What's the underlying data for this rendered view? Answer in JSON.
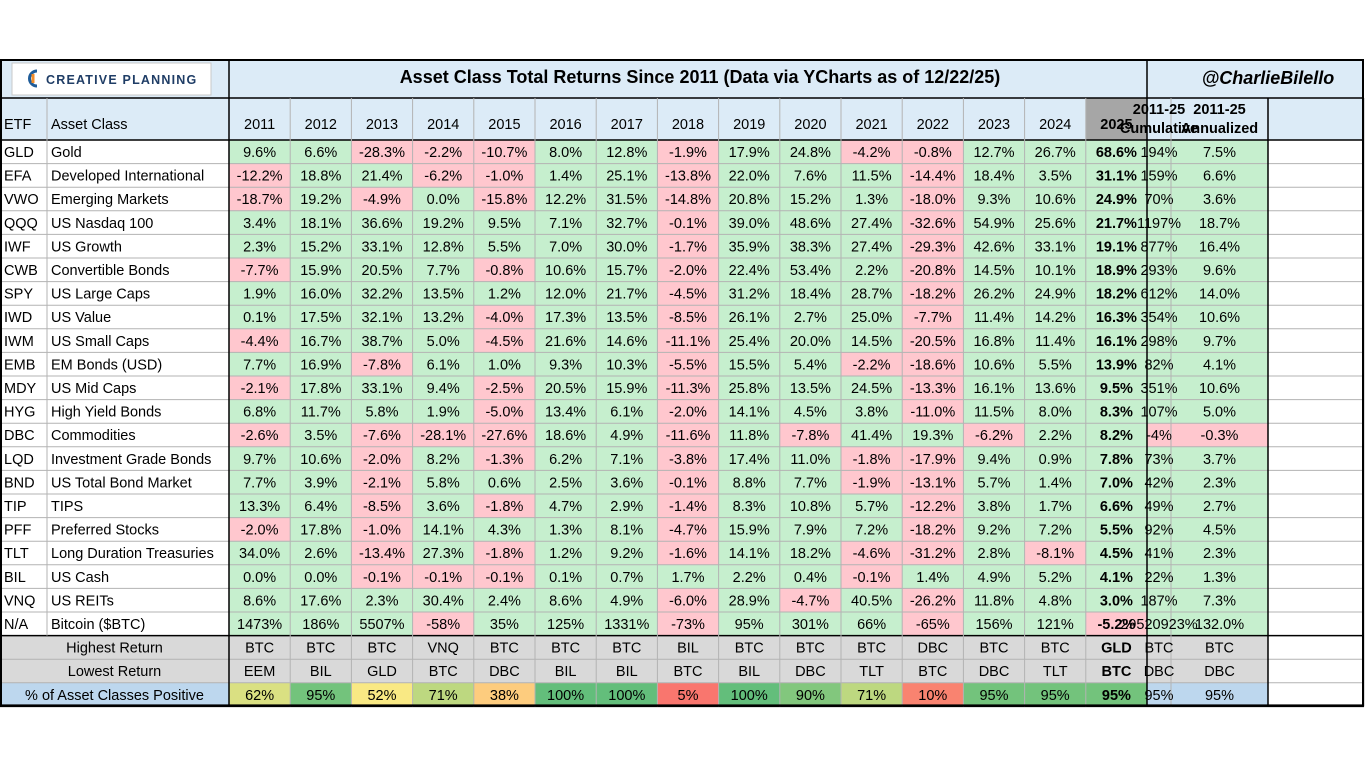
{
  "header": {
    "logo_text": "CREATIVE PLANNING",
    "title": "Asset Class Total Returns Since 2011 (Data via YCharts as of 12/22/25)",
    "handle": "@CharlieBilello"
  },
  "chart_data": {
    "type": "table",
    "title": "Asset Class Total Returns Since 2011 (Data via YCharts as of 12/22/25)",
    "columns": {
      "etf": "ETF",
      "asset_class": "Asset Class",
      "years": [
        "2011",
        "2012",
        "2013",
        "2014",
        "2015",
        "2016",
        "2017",
        "2018",
        "2019",
        "2020",
        "2021",
        "2022",
        "2023",
        "2024",
        "2025"
      ],
      "cumulative": [
        "2011-25",
        "Cumulative"
      ],
      "annualized": [
        "2011-25",
        "Annualized"
      ]
    },
    "rows": [
      {
        "etf": "GLD",
        "name": "Gold",
        "values": [
          "9.6%",
          "6.6%",
          "-28.3%",
          "-2.2%",
          "-10.7%",
          "8.0%",
          "12.8%",
          "-1.9%",
          "17.9%",
          "24.8%",
          "-4.2%",
          "-0.8%",
          "12.7%",
          "26.7%",
          "68.6%"
        ],
        "cumulative": "194%",
        "annualized": "7.5%"
      },
      {
        "etf": "EFA",
        "name": "Developed International",
        "values": [
          "-12.2%",
          "18.8%",
          "21.4%",
          "-6.2%",
          "-1.0%",
          "1.4%",
          "25.1%",
          "-13.8%",
          "22.0%",
          "7.6%",
          "11.5%",
          "-14.4%",
          "18.4%",
          "3.5%",
          "31.1%"
        ],
        "cumulative": "159%",
        "annualized": "6.6%"
      },
      {
        "etf": "VWO",
        "name": "Emerging Markets",
        "values": [
          "-18.7%",
          "19.2%",
          "-4.9%",
          "0.0%",
          "-15.8%",
          "12.2%",
          "31.5%",
          "-14.8%",
          "20.8%",
          "15.2%",
          "1.3%",
          "-18.0%",
          "9.3%",
          "10.6%",
          "24.9%"
        ],
        "cumulative": "70%",
        "annualized": "3.6%"
      },
      {
        "etf": "QQQ",
        "name": "US Nasdaq 100",
        "values": [
          "3.4%",
          "18.1%",
          "36.6%",
          "19.2%",
          "9.5%",
          "7.1%",
          "32.7%",
          "-0.1%",
          "39.0%",
          "48.6%",
          "27.4%",
          "-32.6%",
          "54.9%",
          "25.6%",
          "21.7%"
        ],
        "cumulative": "1197%",
        "annualized": "18.7%"
      },
      {
        "etf": "IWF",
        "name": "US Growth",
        "values": [
          "2.3%",
          "15.2%",
          "33.1%",
          "12.8%",
          "5.5%",
          "7.0%",
          "30.0%",
          "-1.7%",
          "35.9%",
          "38.3%",
          "27.4%",
          "-29.3%",
          "42.6%",
          "33.1%",
          "19.1%"
        ],
        "cumulative": "877%",
        "annualized": "16.4%"
      },
      {
        "etf": "CWB",
        "name": "Convertible Bonds",
        "values": [
          "-7.7%",
          "15.9%",
          "20.5%",
          "7.7%",
          "-0.8%",
          "10.6%",
          "15.7%",
          "-2.0%",
          "22.4%",
          "53.4%",
          "2.2%",
          "-20.8%",
          "14.5%",
          "10.1%",
          "18.9%"
        ],
        "cumulative": "293%",
        "annualized": "9.6%"
      },
      {
        "etf": "SPY",
        "name": "US Large Caps",
        "values": [
          "1.9%",
          "16.0%",
          "32.2%",
          "13.5%",
          "1.2%",
          "12.0%",
          "21.7%",
          "-4.5%",
          "31.2%",
          "18.4%",
          "28.7%",
          "-18.2%",
          "26.2%",
          "24.9%",
          "18.2%"
        ],
        "cumulative": "612%",
        "annualized": "14.0%"
      },
      {
        "etf": "IWD",
        "name": "US Value",
        "values": [
          "0.1%",
          "17.5%",
          "32.1%",
          "13.2%",
          "-4.0%",
          "17.3%",
          "13.5%",
          "-8.5%",
          "26.1%",
          "2.7%",
          "25.0%",
          "-7.7%",
          "11.4%",
          "14.2%",
          "16.3%"
        ],
        "cumulative": "354%",
        "annualized": "10.6%"
      },
      {
        "etf": "IWM",
        "name": "US Small Caps",
        "values": [
          "-4.4%",
          "16.7%",
          "38.7%",
          "5.0%",
          "-4.5%",
          "21.6%",
          "14.6%",
          "-11.1%",
          "25.4%",
          "20.0%",
          "14.5%",
          "-20.5%",
          "16.8%",
          "11.4%",
          "16.1%"
        ],
        "cumulative": "298%",
        "annualized": "9.7%"
      },
      {
        "etf": "EMB",
        "name": "EM Bonds (USD)",
        "values": [
          "7.7%",
          "16.9%",
          "-7.8%",
          "6.1%",
          "1.0%",
          "9.3%",
          "10.3%",
          "-5.5%",
          "15.5%",
          "5.4%",
          "-2.2%",
          "-18.6%",
          "10.6%",
          "5.5%",
          "13.9%"
        ],
        "cumulative": "82%",
        "annualized": "4.1%"
      },
      {
        "etf": "MDY",
        "name": "US Mid Caps",
        "values": [
          "-2.1%",
          "17.8%",
          "33.1%",
          "9.4%",
          "-2.5%",
          "20.5%",
          "15.9%",
          "-11.3%",
          "25.8%",
          "13.5%",
          "24.5%",
          "-13.3%",
          "16.1%",
          "13.6%",
          "9.5%"
        ],
        "cumulative": "351%",
        "annualized": "10.6%"
      },
      {
        "etf": "HYG",
        "name": "High Yield Bonds",
        "values": [
          "6.8%",
          "11.7%",
          "5.8%",
          "1.9%",
          "-5.0%",
          "13.4%",
          "6.1%",
          "-2.0%",
          "14.1%",
          "4.5%",
          "3.8%",
          "-11.0%",
          "11.5%",
          "8.0%",
          "8.3%"
        ],
        "cumulative": "107%",
        "annualized": "5.0%"
      },
      {
        "etf": "DBC",
        "name": "Commodities",
        "values": [
          "-2.6%",
          "3.5%",
          "-7.6%",
          "-28.1%",
          "-27.6%",
          "18.6%",
          "4.9%",
          "-11.6%",
          "11.8%",
          "-7.8%",
          "41.4%",
          "19.3%",
          "-6.2%",
          "2.2%",
          "8.2%"
        ],
        "cumulative": "-4%",
        "annualized": "-0.3%"
      },
      {
        "etf": "LQD",
        "name": "Investment Grade Bonds",
        "values": [
          "9.7%",
          "10.6%",
          "-2.0%",
          "8.2%",
          "-1.3%",
          "6.2%",
          "7.1%",
          "-3.8%",
          "17.4%",
          "11.0%",
          "-1.8%",
          "-17.9%",
          "9.4%",
          "0.9%",
          "7.8%"
        ],
        "cumulative": "73%",
        "annualized": "3.7%"
      },
      {
        "etf": "BND",
        "name": "US Total Bond Market",
        "values": [
          "7.7%",
          "3.9%",
          "-2.1%",
          "5.8%",
          "0.6%",
          "2.5%",
          "3.6%",
          "-0.1%",
          "8.8%",
          "7.7%",
          "-1.9%",
          "-13.1%",
          "5.7%",
          "1.4%",
          "7.0%"
        ],
        "cumulative": "42%",
        "annualized": "2.3%"
      },
      {
        "etf": "TIP",
        "name": "TIPS",
        "values": [
          "13.3%",
          "6.4%",
          "-8.5%",
          "3.6%",
          "-1.8%",
          "4.7%",
          "2.9%",
          "-1.4%",
          "8.3%",
          "10.8%",
          "5.7%",
          "-12.2%",
          "3.8%",
          "1.7%",
          "6.6%"
        ],
        "cumulative": "49%",
        "annualized": "2.7%"
      },
      {
        "etf": "PFF",
        "name": "Preferred Stocks",
        "values": [
          "-2.0%",
          "17.8%",
          "-1.0%",
          "14.1%",
          "4.3%",
          "1.3%",
          "8.1%",
          "-4.7%",
          "15.9%",
          "7.9%",
          "7.2%",
          "-18.2%",
          "9.2%",
          "7.2%",
          "5.5%"
        ],
        "cumulative": "92%",
        "annualized": "4.5%"
      },
      {
        "etf": "TLT",
        "name": "Long Duration Treasuries",
        "values": [
          "34.0%",
          "2.6%",
          "-13.4%",
          "27.3%",
          "-1.8%",
          "1.2%",
          "9.2%",
          "-1.6%",
          "14.1%",
          "18.2%",
          "-4.6%",
          "-31.2%",
          "2.8%",
          "-8.1%",
          "4.5%"
        ],
        "cumulative": "41%",
        "annualized": "2.3%"
      },
      {
        "etf": "BIL",
        "name": "US Cash",
        "values": [
          "0.0%",
          "0.0%",
          "-0.1%",
          "-0.1%",
          "-0.1%",
          "0.1%",
          "0.7%",
          "1.7%",
          "2.2%",
          "0.4%",
          "-0.1%",
          "1.4%",
          "4.9%",
          "5.2%",
          "4.1%"
        ],
        "cumulative": "22%",
        "annualized": "1.3%"
      },
      {
        "etf": "VNQ",
        "name": "US REITs",
        "values": [
          "8.6%",
          "17.6%",
          "2.3%",
          "30.4%",
          "2.4%",
          "8.6%",
          "4.9%",
          "-6.0%",
          "28.9%",
          "-4.7%",
          "40.5%",
          "-26.2%",
          "11.8%",
          "4.8%",
          "3.0%"
        ],
        "cumulative": "187%",
        "annualized": "7.3%"
      },
      {
        "etf": "N/A",
        "name": "Bitcoin ($BTC)",
        "values": [
          "1473%",
          "186%",
          "5507%",
          "-58%",
          "35%",
          "125%",
          "1331%",
          "-73%",
          "95%",
          "301%",
          "66%",
          "-65%",
          "156%",
          "121%",
          "-5.2%"
        ],
        "cumulative": "29520923%",
        "annualized": "132.0%"
      }
    ],
    "summary": {
      "highest": {
        "label": "Highest Return",
        "values": [
          "BTC",
          "BTC",
          "BTC",
          "VNQ",
          "BTC",
          "BTC",
          "BTC",
          "BIL",
          "BTC",
          "BTC",
          "BTC",
          "DBC",
          "BTC",
          "BTC",
          "GLD"
        ],
        "cumulative": "BTC",
        "annualized": "BTC"
      },
      "lowest": {
        "label": "Lowest Return",
        "values": [
          "EEM",
          "BIL",
          "GLD",
          "BTC",
          "DBC",
          "BIL",
          "BIL",
          "BTC",
          "BIL",
          "DBC",
          "TLT",
          "BTC",
          "DBC",
          "TLT",
          "BTC"
        ],
        "cumulative": "DBC",
        "annualized": "DBC"
      },
      "positive": {
        "label": "% of Asset Classes Positive",
        "values": [
          "62%",
          "95%",
          "52%",
          "71%",
          "38%",
          "100%",
          "100%",
          "5%",
          "100%",
          "90%",
          "71%",
          "10%",
          "95%",
          "95%",
          "95%"
        ],
        "cumulative": "95%",
        "annualized": "95%"
      }
    }
  },
  "colors": {
    "positive_fill": "#c6efce",
    "negative_fill": "#ffc7ce",
    "header_fill": "#dcebf7",
    "summary_fill": "#d9d9d9",
    "current_year_header": "#a6a6a6",
    "border_dark": "#000000",
    "grid": "#b3b3b3",
    "positive_scale": [
      "#f8696b",
      "#ffeb84",
      "#63be7b"
    ],
    "summary_blue": "#bdd7ee"
  },
  "icons": {
    "logo": "creative-planning-logo"
  }
}
